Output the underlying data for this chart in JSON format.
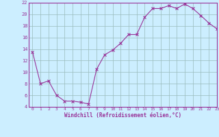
{
  "x": [
    0,
    1,
    2,
    3,
    4,
    5,
    6,
    7,
    8,
    9,
    10,
    11,
    12,
    13,
    14,
    15,
    16,
    17,
    18,
    19,
    20,
    21,
    22,
    23
  ],
  "y": [
    13.5,
    8.0,
    8.5,
    6.0,
    5.0,
    5.0,
    4.8,
    4.5,
    10.5,
    13.0,
    13.8,
    15.0,
    16.5,
    16.5,
    19.5,
    21.0,
    21.0,
    21.5,
    21.0,
    21.8,
    21.0,
    19.8,
    18.5,
    17.5
  ],
  "line_color": "#993399",
  "marker": "x",
  "marker_size": 3,
  "bg_color": "#cceeff",
  "grid_color": "#99bbbb",
  "xlabel": "Windchill (Refroidissement éolien,°C)",
  "xlabel_color": "#993399",
  "tick_color": "#993399",
  "ylim": [
    4,
    22
  ],
  "xlim": [
    -0.5,
    23
  ],
  "yticks": [
    4,
    6,
    8,
    10,
    12,
    14,
    16,
    18,
    20,
    22
  ],
  "xticks": [
    0,
    1,
    2,
    3,
    4,
    5,
    6,
    7,
    8,
    9,
    10,
    11,
    12,
    13,
    14,
    15,
    16,
    17,
    18,
    19,
    20,
    21,
    22,
    23
  ]
}
